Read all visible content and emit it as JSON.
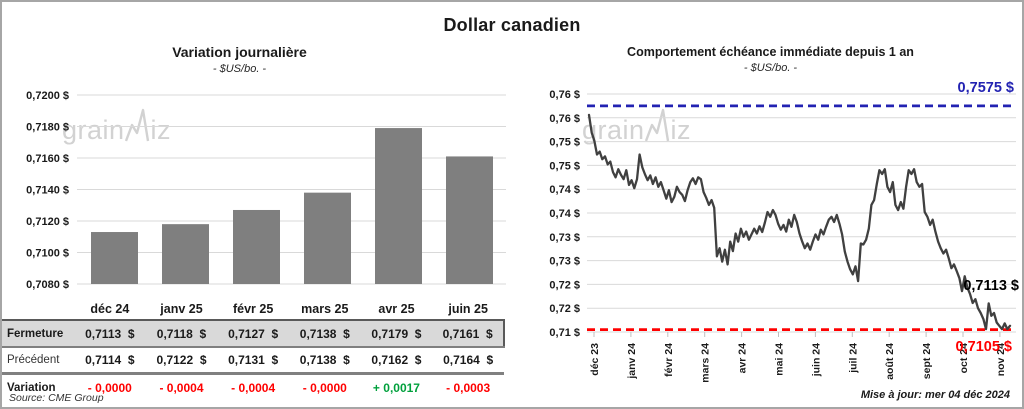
{
  "page": {
    "title": "Dollar canadien",
    "source_note": "Source: CME Group",
    "updated_note": "Mise à jour: mer 04 déc 2024",
    "watermark": {
      "part1": "grain",
      "part2": "iz"
    }
  },
  "colors": {
    "bar": "#7f7f7f",
    "line": "#404040",
    "grid": "#d9d9d9",
    "tick": "#bfbfbf",
    "ref_high": "#2222b2",
    "ref_low": "#ff0000",
    "negative": "#ff0000",
    "positive": "#00a03c",
    "table_band": "#d9d9d9"
  },
  "table": {
    "columns": [
      "déc 24",
      "janv 25",
      "févr 25",
      "mars 25",
      "avr 25",
      "juin 25"
    ],
    "rows": {
      "fermeture": {
        "label": "Fermeture",
        "values": [
          "0,7113  $",
          "0,7118  $",
          "0,7127  $",
          "0,7138  $",
          "0,7179  $",
          "0,7161  $"
        ]
      },
      "precedent": {
        "label": "Précédent",
        "values": [
          "0,7114  $",
          "0,7122  $",
          "0,7131  $",
          "0,7138  $",
          "0,7162  $",
          "0,7164  $"
        ]
      },
      "variation": {
        "label": "Variation",
        "values": [
          "- 0,0000",
          "- 0,0004",
          "- 0,0004",
          "- 0,0000",
          "+ 0,0017",
          "- 0,0003"
        ]
      }
    }
  },
  "chart_data": [
    {
      "type": "bar",
      "title": "Variation  journalière",
      "subtitle": "- $US/bo. -",
      "categories": [
        "déc 24",
        "janv 25",
        "févr 25",
        "mars 25",
        "avr 25",
        "juin 25"
      ],
      "values": [
        0.7113,
        0.7118,
        0.7127,
        0.7138,
        0.7179,
        0.7161
      ],
      "ylim": [
        0.708,
        0.72
      ],
      "ytick_step": 0.002,
      "ytick_labels": [
        "0,7200 $",
        "0,7180 $",
        "0,7160 $",
        "0,7140 $",
        "0,7120 $",
        "0,7100 $",
        "0,7080 $"
      ],
      "grid": true,
      "legend": "none"
    },
    {
      "type": "line",
      "title": "Comportement échéance immédiate depuis 1 an",
      "subtitle": "- $US/bo. -",
      "x_tick_labels": [
        "déc 23",
        "janv 24",
        "févr 24",
        "mars 24",
        "avr 24",
        "mai 24",
        "juin 24",
        "juil 24",
        "août 24",
        "sept 24",
        "oct 24",
        "nov 24"
      ],
      "ylim": [
        0.71,
        0.76
      ],
      "ytick_step": 0.005,
      "ytick_labels": [
        "0,76 $",
        "0,76 $",
        "0,75 $",
        "0,75 $",
        "0,74 $",
        "0,74 $",
        "0,73 $",
        "0,73 $",
        "0,72 $",
        "0,72 $",
        "0,71 $"
      ],
      "grid": true,
      "legend": "none",
      "ref_lines": {
        "high": {
          "value": 0.7575,
          "label": "0,7575 $",
          "style": "dashed"
        },
        "low": {
          "value": 0.7105,
          "label": "0,7105 $",
          "style": "dashed"
        }
      },
      "end_label": {
        "text": "0,7113 $",
        "value": 0.7113
      },
      "values": [
        0.7556,
        0.7519,
        0.7502,
        0.7473,
        0.7479,
        0.7463,
        0.7469,
        0.7452,
        0.7458,
        0.7436,
        0.7425,
        0.7442,
        0.743,
        0.7421,
        0.744,
        0.7409,
        0.7419,
        0.7402,
        0.7421,
        0.7473,
        0.7446,
        0.7431,
        0.7419,
        0.7429,
        0.7411,
        0.7425,
        0.7405,
        0.7415,
        0.7398,
        0.738,
        0.7398,
        0.7373,
        0.7384,
        0.7405,
        0.7394,
        0.7388,
        0.7375,
        0.7398,
        0.7415,
        0.7423,
        0.7411,
        0.7425,
        0.7421,
        0.7394,
        0.7382,
        0.7367,
        0.7377,
        0.7361,
        0.7259,
        0.7276,
        0.7248,
        0.7273,
        0.7242,
        0.729,
        0.727,
        0.7307,
        0.729,
        0.7317,
        0.73,
        0.7311,
        0.7294,
        0.7305,
        0.7317,
        0.7307,
        0.7322,
        0.731,
        0.733,
        0.7352,
        0.7342,
        0.7356,
        0.7346,
        0.7327,
        0.7315,
        0.7325,
        0.7311,
        0.7336,
        0.7321,
        0.7346,
        0.7331,
        0.7307,
        0.729,
        0.7276,
        0.7286,
        0.7273,
        0.729,
        0.7305,
        0.7294,
        0.7315,
        0.7305,
        0.7321,
        0.7336,
        0.7342,
        0.7331,
        0.7346,
        0.7327,
        0.7305,
        0.7269,
        0.7248,
        0.7232,
        0.7221,
        0.7238,
        0.7207,
        0.7286,
        0.7284,
        0.7294,
        0.7317,
        0.7367,
        0.7377,
        0.7411,
        0.744,
        0.7432,
        0.7442,
        0.7405,
        0.7394,
        0.7415,
        0.7367,
        0.7356,
        0.7373,
        0.7359,
        0.7405,
        0.744,
        0.7432,
        0.7442,
        0.7415,
        0.7405,
        0.7411,
        0.7352,
        0.7342,
        0.7325,
        0.7336,
        0.7311,
        0.729,
        0.7276,
        0.7265,
        0.7273,
        0.7255,
        0.7234,
        0.7242,
        0.7228,
        0.7213,
        0.7186,
        0.7217,
        0.7193,
        0.718,
        0.7161,
        0.7169,
        0.715,
        0.714,
        0.7127,
        0.7106,
        0.716,
        0.7134,
        0.714,
        0.712,
        0.7113,
        0.7106,
        0.7118,
        0.7106,
        0.7113
      ]
    }
  ]
}
